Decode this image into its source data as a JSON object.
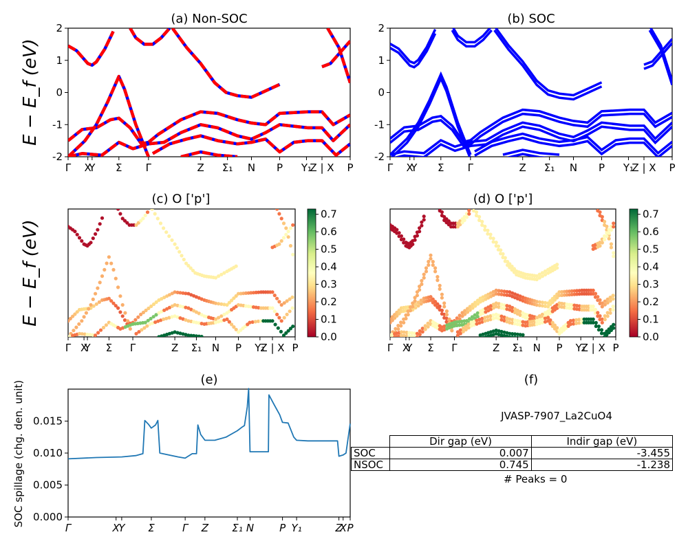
{
  "panels": {
    "a": {
      "title": "(a) Non-SOC"
    },
    "b": {
      "title": "(b) SOC"
    },
    "c": {
      "title": "(c)  O ['p']"
    },
    "d": {
      "title": "(d) O ['p']"
    },
    "e": {
      "title": "(e)"
    },
    "f": {
      "title": "(f)"
    }
  },
  "band_ylabel": "E − E_f (eV)",
  "colorbar": {
    "ticks": [
      "0.0",
      "0.1",
      "0.2",
      "0.3",
      "0.4",
      "0.5",
      "0.6",
      "0.7"
    ],
    "colors": [
      "#a50026",
      "#f46d43",
      "#fee08b",
      "#d9ef8b",
      "#66bd63",
      "#006837"
    ]
  },
  "table": {
    "title": "JVASP-7907_La2CuO4",
    "columns": [
      "Dir gap (eV)",
      "Indir gap (eV)"
    ],
    "rows": [
      {
        "label": "SOC",
        "dir": "0.007",
        "indir": "-3.455"
      },
      {
        "label": "NSOC",
        "dir": "0.745",
        "indir": "-1.238"
      }
    ],
    "peaks": "# Peaks = 0"
  },
  "chart_data": [
    {
      "type": "line",
      "title": "(a) Non-SOC",
      "ylabel": "E − E_f (eV)",
      "ylim": [
        -2,
        2
      ],
      "yticks": [
        -2,
        -1,
        0,
        1,
        2
      ],
      "xticks": [
        {
          "t": 0.0,
          "label": "Γ"
        },
        {
          "t": 0.07,
          "label": "X"
        },
        {
          "t": 0.085,
          "label": "Y"
        },
        {
          "t": 0.18,
          "label": "Σ"
        },
        {
          "t": 0.285,
          "label": "Γ"
        },
        {
          "t": 0.47,
          "label": "Z"
        },
        {
          "t": 0.565,
          "label": "Σ₁"
        },
        {
          "t": 0.65,
          "label": "N"
        },
        {
          "t": 0.75,
          "label": "P"
        },
        {
          "t": 0.845,
          "label": "Y₁"
        },
        {
          "t": 0.9,
          "label": "Z | X"
        },
        {
          "t": 1.0,
          "label": "P"
        }
      ],
      "series": [
        {
          "values": [
            [
              0,
              1.45
            ],
            [
              0.03,
              1.3
            ],
            [
              0.07,
              0.9
            ],
            [
              0.085,
              0.85
            ],
            [
              0.1,
              0.95
            ],
            [
              0.13,
              1.35
            ],
            [
              0.16,
              1.9
            ]
          ]
        },
        {
          "values": [
            [
              0.22,
              2.0
            ],
            [
              0.24,
              1.7
            ],
            [
              0.27,
              1.5
            ],
            [
              0.3,
              1.5
            ],
            [
              0.33,
              1.7
            ],
            [
              0.36,
              2.0
            ]
          ]
        },
        {
          "values": [
            [
              0.37,
              2.0
            ],
            [
              0.42,
              1.4
            ],
            [
              0.47,
              0.9
            ],
            [
              0.52,
              0.3
            ],
            [
              0.56,
              0.0
            ],
            [
              0.6,
              -0.1
            ],
            [
              0.65,
              -0.15
            ],
            [
              0.7,
              0.05
            ],
            [
              0.75,
              0.25
            ]
          ]
        },
        {
          "values": [
            [
              0.0,
              -1.5
            ],
            [
              0.05,
              -1.15
            ],
            [
              0.1,
              -1.1
            ],
            [
              0.15,
              -0.85
            ],
            [
              0.18,
              -0.8
            ],
            [
              0.22,
              -1.1
            ],
            [
              0.26,
              -1.6
            ],
            [
              0.285,
              -1.55
            ],
            [
              0.32,
              -1.3
            ],
            [
              0.4,
              -0.85
            ],
            [
              0.47,
              -0.6
            ],
            [
              0.53,
              -0.65
            ],
            [
              0.6,
              -0.85
            ],
            [
              0.65,
              -0.95
            ],
            [
              0.7,
              -1.0
            ],
            [
              0.75,
              -0.65
            ],
            [
              0.85,
              -0.6
            ],
            [
              0.9,
              -0.6
            ],
            [
              0.94,
              -1.0
            ],
            [
              1.0,
              -0.7
            ]
          ]
        },
        {
          "values": [
            [
              0.0,
              -2.0
            ],
            [
              0.06,
              -1.5
            ],
            [
              0.1,
              -1.0
            ],
            [
              0.14,
              -0.3
            ],
            [
              0.18,
              0.5
            ],
            [
              0.2,
              0.1
            ],
            [
              0.24,
              -1.0
            ],
            [
              0.285,
              -2.0
            ]
          ]
        },
        {
          "values": [
            [
              0.0,
              -2.0
            ],
            [
              0.05,
              -1.9
            ],
            [
              0.12,
              -1.95
            ],
            [
              0.18,
              -1.55
            ],
            [
              0.23,
              -1.75
            ],
            [
              0.285,
              -1.6
            ],
            [
              0.34,
              -1.55
            ],
            [
              0.4,
              -1.25
            ],
            [
              0.47,
              -1.0
            ],
            [
              0.53,
              -1.1
            ],
            [
              0.6,
              -1.35
            ],
            [
              0.65,
              -1.45
            ],
            [
              0.7,
              -1.25
            ],
            [
              0.75,
              -1.0
            ],
            [
              0.85,
              -1.1
            ],
            [
              0.9,
              -1.1
            ],
            [
              0.94,
              -1.5
            ],
            [
              1.0,
              -1.0
            ]
          ]
        },
        {
          "values": [
            [
              0.3,
              -1.9
            ],
            [
              0.36,
              -1.6
            ],
            [
              0.42,
              -1.45
            ],
            [
              0.47,
              -1.35
            ],
            [
              0.53,
              -1.5
            ],
            [
              0.6,
              -1.6
            ],
            [
              0.65,
              -1.55
            ],
            [
              0.7,
              -1.45
            ],
            [
              0.75,
              -1.85
            ],
            [
              0.8,
              -1.55
            ],
            [
              0.85,
              -1.5
            ],
            [
              0.9,
              -1.5
            ],
            [
              0.95,
              -1.95
            ],
            [
              1.0,
              -1.6
            ]
          ]
        },
        {
          "values": [
            [
              0.4,
              -2.0
            ],
            [
              0.47,
              -1.85
            ],
            [
              0.53,
              -1.95
            ],
            [
              0.6,
              -2.0
            ]
          ]
        },
        {
          "values": [
            [
              0.92,
              2.0
            ],
            [
              0.96,
              1.4
            ],
            [
              1.0,
              0.3
            ]
          ]
        },
        {
          "values": [
            [
              0.9,
              0.8
            ],
            [
              0.93,
              0.9
            ],
            [
              0.97,
              1.3
            ],
            [
              1.0,
              1.6
            ]
          ]
        }
      ]
    },
    {
      "type": "line",
      "title": "(b) SOC",
      "ylim": [
        -2,
        2
      ],
      "yticks": [
        -2,
        -1,
        0,
        1,
        2
      ],
      "xticks": [
        {
          "t": 0.0,
          "label": "Γ"
        },
        {
          "t": 0.07,
          "label": "X"
        },
        {
          "t": 0.085,
          "label": "Y"
        },
        {
          "t": 0.18,
          "label": "Σ"
        },
        {
          "t": 0.285,
          "label": "Γ"
        },
        {
          "t": 0.47,
          "label": "Z"
        },
        {
          "t": 0.565,
          "label": "Σ₁"
        },
        {
          "t": 0.65,
          "label": "N"
        },
        {
          "t": 0.75,
          "label": "P"
        },
        {
          "t": 0.845,
          "label": "Y₁"
        },
        {
          "t": 0.9,
          "label": "Z | X"
        },
        {
          "t": 1.0,
          "label": "P"
        }
      ],
      "series": "same band structure as (a), spin-orbit split"
    },
    {
      "type": "scatter",
      "title": "(c)  O ['p']",
      "ylim": [
        -2,
        2
      ],
      "colorbar": [
        0.0,
        0.7
      ],
      "xticks": [
        {
          "t": 0.0,
          "label": "Γ"
        },
        {
          "t": 0.07,
          "label": "X"
        },
        {
          "t": 0.085,
          "label": "Y"
        },
        {
          "t": 0.18,
          "label": "Σ"
        },
        {
          "t": 0.285,
          "label": "Γ"
        },
        {
          "t": 0.47,
          "label": "Z"
        },
        {
          "t": 0.565,
          "label": "Σ₁"
        },
        {
          "t": 0.65,
          "label": "N"
        },
        {
          "t": 0.75,
          "label": "P"
        },
        {
          "t": 0.845,
          "label": "Y₁"
        },
        {
          "t": 0.9,
          "label": "Z | X"
        },
        {
          "t": 1.0,
          "label": "P"
        }
      ]
    },
    {
      "type": "scatter",
      "title": "(d) O ['p']",
      "ylim": [
        -2,
        2
      ],
      "colorbar": [
        0.0,
        0.7
      ],
      "xticks": [
        {
          "t": 0.0,
          "label": "Γ"
        },
        {
          "t": 0.07,
          "label": "X"
        },
        {
          "t": 0.085,
          "label": "Y"
        },
        {
          "t": 0.18,
          "label": "Σ"
        },
        {
          "t": 0.285,
          "label": "Γ"
        },
        {
          "t": 0.47,
          "label": "Z"
        },
        {
          "t": 0.565,
          "label": "Σ₁"
        },
        {
          "t": 0.65,
          "label": "N"
        },
        {
          "t": 0.75,
          "label": "P"
        },
        {
          "t": 0.845,
          "label": "Y₁"
        },
        {
          "t": 0.9,
          "label": "Z | X"
        },
        {
          "t": 1.0,
          "label": "P"
        }
      ]
    },
    {
      "type": "line",
      "title": "(e)",
      "ylabel": "SOC spillage (chg. den. unit)",
      "ylim": [
        0,
        0.02
      ],
      "yticks": [
        "0.000",
        "0.005",
        "0.010",
        "0.015"
      ],
      "xticks": [
        {
          "t": 0.0,
          "label": "Γ"
        },
        {
          "t": 0.17,
          "label": "X"
        },
        {
          "t": 0.19,
          "label": "Y"
        },
        {
          "t": 0.295,
          "label": "Σ"
        },
        {
          "t": 0.415,
          "label": "Γ"
        },
        {
          "t": 0.485,
          "label": "Z"
        },
        {
          "t": 0.6,
          "label": "Σ₁"
        },
        {
          "t": 0.645,
          "label": "N"
        },
        {
          "t": 0.76,
          "label": "P"
        },
        {
          "t": 0.81,
          "label": "Y₁"
        },
        {
          "t": 0.96,
          "label": "Z"
        },
        {
          "t": 0.975,
          "label": "X"
        },
        {
          "t": 1.0,
          "label": "P"
        }
      ],
      "series": [
        {
          "values": [
            [
              0.0,
              0.0091
            ],
            [
              0.1,
              0.0093
            ],
            [
              0.19,
              0.0094
            ],
            [
              0.24,
              0.0096
            ],
            [
              0.265,
              0.0099
            ],
            [
              0.272,
              0.0151
            ],
            [
              0.285,
              0.0145
            ],
            [
              0.295,
              0.0139
            ],
            [
              0.31,
              0.0144
            ],
            [
              0.318,
              0.0151
            ],
            [
              0.325,
              0.01
            ],
            [
              0.39,
              0.0094
            ],
            [
              0.415,
              0.0092
            ],
            [
              0.44,
              0.0099
            ],
            [
              0.455,
              0.0099
            ],
            [
              0.46,
              0.0144
            ],
            [
              0.47,
              0.0129
            ],
            [
              0.485,
              0.012
            ],
            [
              0.52,
              0.012
            ],
            [
              0.56,
              0.0125
            ],
            [
              0.6,
              0.0135
            ],
            [
              0.615,
              0.014
            ],
            [
              0.625,
              0.0143
            ],
            [
              0.635,
              0.0172
            ],
            [
              0.64,
              0.0201
            ],
            [
              0.645,
              0.0102
            ],
            [
              0.69,
              0.0102
            ],
            [
              0.71,
              0.0102
            ],
            [
              0.712,
              0.0191
            ],
            [
              0.73,
              0.0176
            ],
            [
              0.75,
              0.016
            ],
            [
              0.76,
              0.0148
            ],
            [
              0.78,
              0.0147
            ],
            [
              0.8,
              0.0125
            ],
            [
              0.81,
              0.012
            ],
            [
              0.85,
              0.0119
            ],
            [
              0.94,
              0.0119
            ],
            [
              0.955,
              0.0119
            ],
            [
              0.96,
              0.0095
            ],
            [
              0.975,
              0.0097
            ],
            [
              0.985,
              0.01
            ],
            [
              1.0,
              0.0146
            ]
          ]
        }
      ]
    }
  ]
}
